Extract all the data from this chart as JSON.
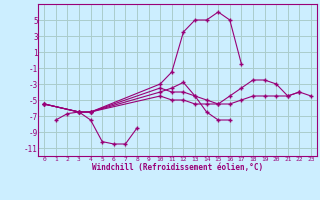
{
  "xlabel": "Windchill (Refroidissement éolien,°C)",
  "xlim": [
    -0.5,
    23.5
  ],
  "ylim": [
    -12,
    7
  ],
  "yticks": [
    -11,
    -9,
    -7,
    -5,
    -3,
    -1,
    1,
    3,
    5
  ],
  "xticks": [
    0,
    1,
    2,
    3,
    4,
    5,
    6,
    7,
    8,
    9,
    10,
    11,
    12,
    13,
    14,
    15,
    16,
    17,
    18,
    19,
    20,
    21,
    22,
    23
  ],
  "bg_color": "#cceeff",
  "line_color": "#990077",
  "grid_color": "#aacccc",
  "series": [
    {
      "x": [
        1,
        2,
        3,
        4,
        5,
        6,
        7,
        8
      ],
      "y": [
        -7.5,
        -6.7,
        -6.5,
        -7.5,
        -10.2,
        -10.5,
        -10.5,
        -8.5
      ]
    },
    {
      "x": [
        0,
        3,
        4,
        10,
        11,
        12,
        13,
        14,
        15,
        16
      ],
      "y": [
        -5.5,
        -6.5,
        -6.5,
        -4.0,
        -3.5,
        -2.8,
        -4.5,
        -6.5,
        -7.5,
        -7.5
      ]
    },
    {
      "x": [
        0,
        3,
        4,
        10,
        11,
        12,
        13,
        14,
        15,
        16,
        17
      ],
      "y": [
        -5.5,
        -6.5,
        -6.5,
        -3.0,
        -1.5,
        3.5,
        5.0,
        5.0,
        6.0,
        5.0,
        -0.5
      ]
    },
    {
      "x": [
        0,
        3,
        4,
        10,
        11,
        12,
        13,
        14,
        15,
        16,
        17,
        18,
        19,
        20,
        21,
        22
      ],
      "y": [
        -5.5,
        -6.5,
        -6.5,
        -3.5,
        -4.0,
        -4.0,
        -4.5,
        -5.0,
        -5.5,
        -4.5,
        -3.5,
        -2.5,
        -2.5,
        -3.0,
        -4.5,
        -4.0
      ]
    },
    {
      "x": [
        0,
        3,
        4,
        10,
        11,
        12,
        13,
        14,
        15,
        16,
        17,
        18,
        19,
        20,
        21,
        22,
        23
      ],
      "y": [
        -5.5,
        -6.5,
        -6.5,
        -4.5,
        -5.0,
        -5.0,
        -5.5,
        -5.5,
        -5.5,
        -5.5,
        -5.0,
        -4.5,
        -4.5,
        -4.5,
        -4.5,
        -4.0,
        -4.5
      ]
    }
  ]
}
